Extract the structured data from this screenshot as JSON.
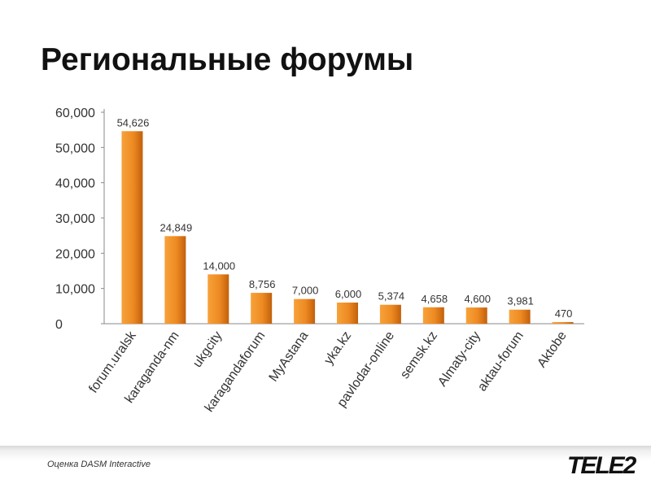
{
  "title": "Региональные форумы",
  "footer": {
    "note": "Оценка DASM Interactive",
    "logo": "TELE2"
  },
  "colors": {
    "bar_light": "#f7a23a",
    "bar_dark": "#c2600c",
    "axis": "#888888",
    "text": "#333333"
  },
  "chart_data": {
    "type": "bar",
    "categories": [
      "forum.uralsk",
      "karaganda-nm",
      "ukgcity",
      "karagandaforum",
      "MyAstana",
      "yka.kz",
      "pavlodar-online",
      "semsk.kz",
      "Almaty-city",
      "aktau-forum",
      "Aktobe"
    ],
    "values": [
      54626,
      24849,
      14000,
      8756,
      7000,
      6000,
      5374,
      4658,
      4600,
      3981,
      470
    ],
    "value_labels": [
      "54,626",
      "24,849",
      "14,000",
      "8,756",
      "7,000",
      "6,000",
      "5,374",
      "4,658",
      "4,600",
      "3,981",
      "470"
    ],
    "y_ticks": [
      "0",
      "10,000",
      "20,000",
      "30,000",
      "40,000",
      "50,000",
      "60,000"
    ],
    "ylim": [
      0,
      60000
    ],
    "grid": false
  }
}
